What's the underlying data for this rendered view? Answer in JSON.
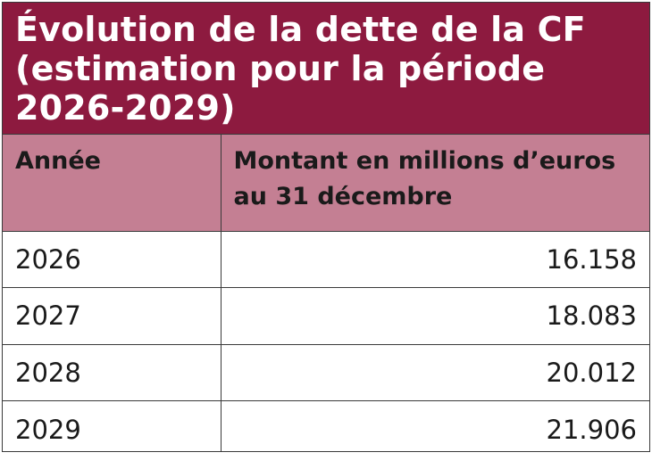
{
  "title": "Évolution de la dette de la CF (estimation pour la période 2026-2029)",
  "colors": {
    "title_background": "#8d1a3f",
    "header_background": "#c47f93",
    "title_text": "#ffffff",
    "border": "#3a3a3a"
  },
  "table": {
    "headers": [
      "Année",
      "Montant en millions d’euros au 31 décembre"
    ],
    "rows": [
      {
        "year": "2026",
        "amount": "16.158"
      },
      {
        "year": "2027",
        "amount": "18.083"
      },
      {
        "year": "2028",
        "amount": "20.012"
      },
      {
        "year": "2029",
        "amount": "21.906"
      }
    ]
  }
}
